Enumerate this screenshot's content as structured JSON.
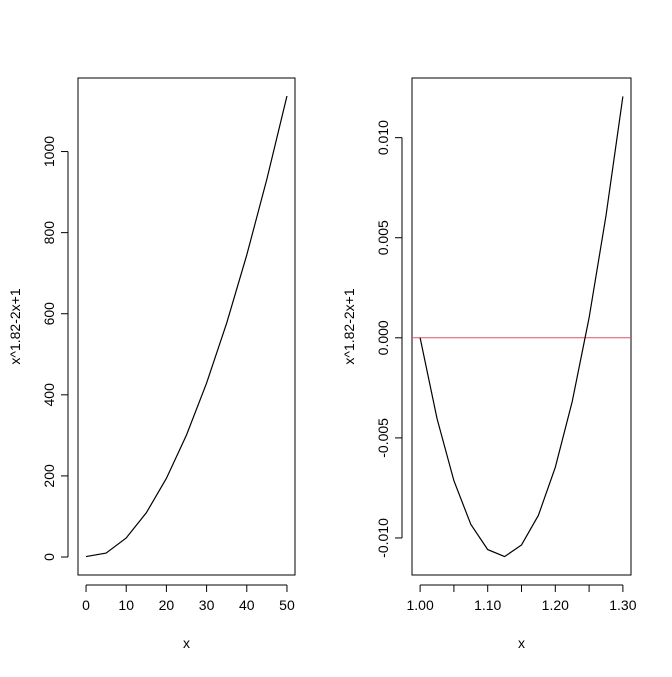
{
  "chart_data": [
    {
      "type": "line",
      "xlabel": "x",
      "ylabel": "x^1.82-2x+1",
      "x": [
        0,
        5,
        10,
        15,
        20,
        25,
        30,
        35,
        40,
        45,
        50
      ],
      "series": [
        {
          "color": "#000000",
          "values": [
            1,
            9.7,
            47,
            109,
            194,
            301,
            429,
            577,
            745,
            932,
            1137
          ]
        }
      ],
      "xlim": [
        -2,
        52
      ],
      "xticks": [
        0,
        10,
        20,
        30,
        40,
        50
      ],
      "ylim": [
        -44.4,
        1181.4
      ],
      "yticks": [
        0,
        200,
        400,
        600,
        800,
        1000
      ]
    },
    {
      "type": "line",
      "xlabel": "x",
      "ylabel": "x^1.82-2x+1",
      "x": [
        1.0,
        1.025,
        1.05,
        1.075,
        1.1,
        1.125,
        1.15,
        1.175,
        1.2,
        1.225,
        1.25,
        1.275,
        1.3
      ],
      "series": [
        {
          "color": "#000000",
          "values": [
            0,
            -0.00403,
            -0.00714,
            -0.00932,
            -0.01058,
            -0.01093,
            -0.01035,
            -0.00887,
            -0.00647,
            -0.00319,
            0.001,
            0.0061,
            0.01206
          ]
        }
      ],
      "reference_line": {
        "value": 0,
        "color": "#df536b"
      },
      "xlim": [
        0.988,
        1.312
      ],
      "xticks": [
        {
          "value": 1.0,
          "label": "1.00"
        },
        {
          "value": 1.05,
          "label": null
        },
        {
          "value": 1.1,
          "label": "1.10"
        },
        {
          "value": 1.15,
          "label": null
        },
        {
          "value": 1.2,
          "label": "1.20"
        },
        {
          "value": 1.25,
          "label": null
        },
        {
          "value": 1.3,
          "label": "1.30"
        }
      ],
      "ylim": [
        -0.01185,
        0.01298
      ],
      "yticks": [
        {
          "value": -0.01,
          "label": "-0.010"
        },
        {
          "value": -0.005,
          "label": "-0.005"
        },
        {
          "value": 0,
          "label": "0.000"
        },
        {
          "value": 0.005,
          "label": "0.005"
        },
        {
          "value": 0.01,
          "label": "0.010"
        }
      ]
    }
  ]
}
